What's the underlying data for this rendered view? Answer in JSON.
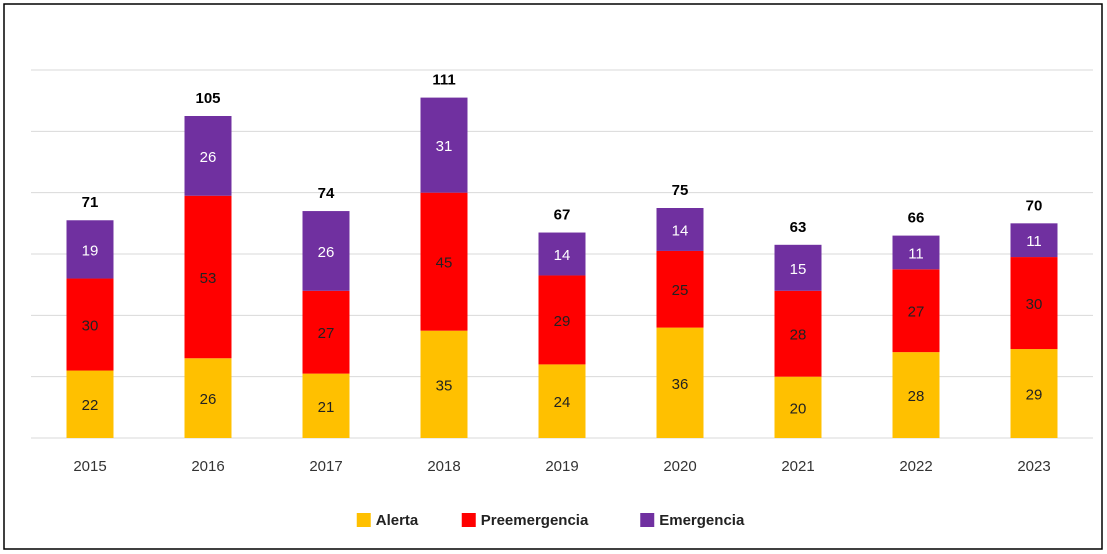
{
  "chart_data": {
    "type": "stacked_bar",
    "categories": [
      "2015",
      "2016",
      "2017",
      "2018",
      "2019",
      "2020",
      "2021",
      "2022",
      "2023"
    ],
    "series": [
      {
        "name": "Alerta",
        "color": "#ffc000",
        "values": [
          22,
          26,
          21,
          35,
          24,
          36,
          20,
          28,
          29
        ]
      },
      {
        "name": "Preemergencia",
        "color": "#ff0000",
        "values": [
          30,
          53,
          27,
          45,
          29,
          25,
          28,
          27,
          30
        ]
      },
      {
        "name": "Emergencia",
        "color": "#7030a0",
        "values": [
          19,
          26,
          26,
          31,
          14,
          14,
          15,
          11,
          11
        ]
      }
    ],
    "totals": [
      71,
      105,
      74,
      111,
      67,
      75,
      63,
      66,
      70
    ],
    "ylim": [
      0,
      120
    ],
    "yticks": [
      0,
      20,
      40,
      60,
      80,
      100,
      120
    ],
    "grid": true,
    "legend": "bottom"
  }
}
